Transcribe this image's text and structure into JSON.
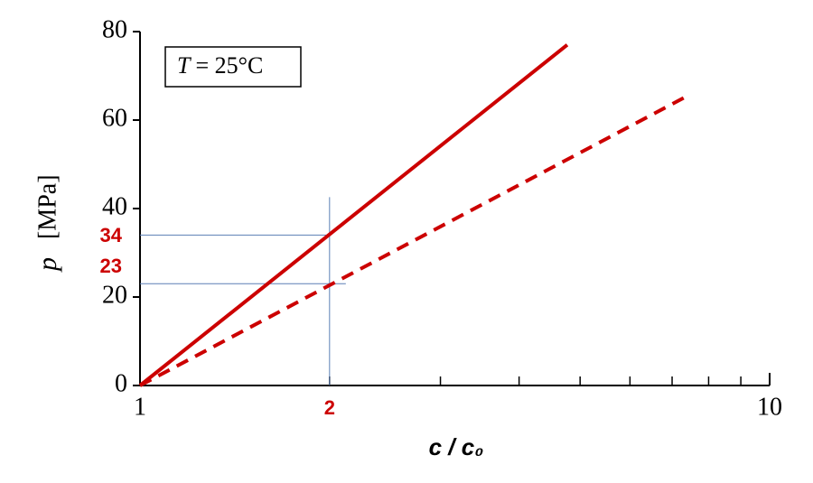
{
  "chart_data": {
    "type": "line",
    "annotation": {
      "symbol": "T",
      "text": "= 25°C"
    },
    "xlabel": "c / c₀",
    "ylabel": {
      "symbol": "p",
      "unit": "[MPa]"
    },
    "xscale": "log",
    "xlim": [
      1,
      10
    ],
    "xticks": [
      1,
      10
    ],
    "xminorticks": [
      2,
      3,
      4,
      5,
      6,
      7,
      8,
      9
    ],
    "ylim": [
      0,
      80
    ],
    "yticks": [
      0,
      20,
      40,
      60,
      80
    ],
    "series": [
      {
        "color": "#cc0000",
        "linestyle": "solid",
        "x": [
          1,
          4.77
        ],
        "y": [
          0,
          77
        ]
      },
      {
        "color": "#cc0000",
        "linestyle": "dashed",
        "x": [
          1,
          7.3
        ],
        "y": [
          0,
          65
        ]
      }
    ],
    "highlight": {
      "x": 2,
      "y": [
        34,
        23
      ],
      "color": "#cc0000",
      "line_color": "#5b7fb5"
    }
  }
}
